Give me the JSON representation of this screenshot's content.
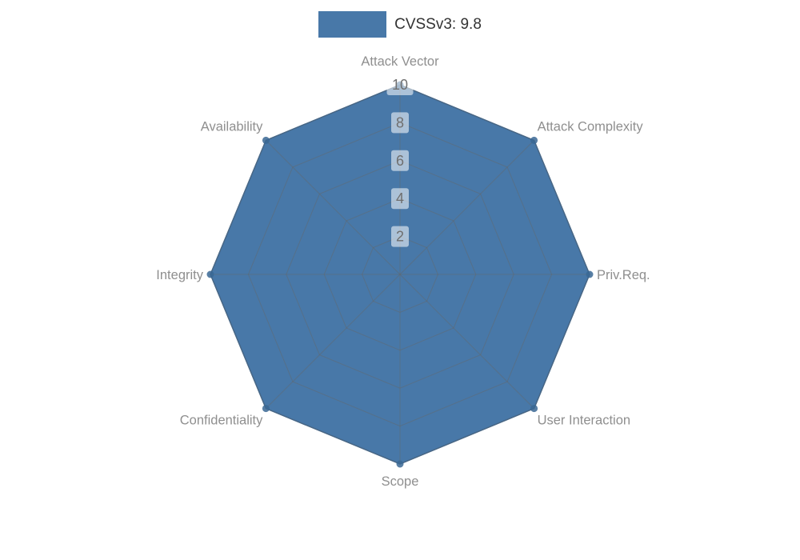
{
  "chart_data": {
    "type": "radar",
    "legend": {
      "label": "CVSSv3: 9.8"
    },
    "categories": [
      "Attack Vector",
      "Attack Complexity",
      "Priv.Req.",
      "User Interaction",
      "Scope",
      "Confidentiality",
      "Integrity",
      "Availability"
    ],
    "series": [
      {
        "name": "CVSSv3: 9.8",
        "values": [
          10,
          10,
          10,
          10,
          10,
          10,
          10,
          10
        ]
      }
    ],
    "ticks": [
      2,
      4,
      6,
      8,
      10
    ],
    "rmax": 10,
    "grid": true,
    "legend_position": "top-center",
    "colors": {
      "fill": "#4878A8",
      "stroke": "#3A6794",
      "grid": "#666666",
      "axis_label": "#8f8f8f",
      "tick_label": "#6f6f6f",
      "tick_bg": "rgba(255,255,255,0.55)",
      "legend_text": "#333333"
    }
  }
}
